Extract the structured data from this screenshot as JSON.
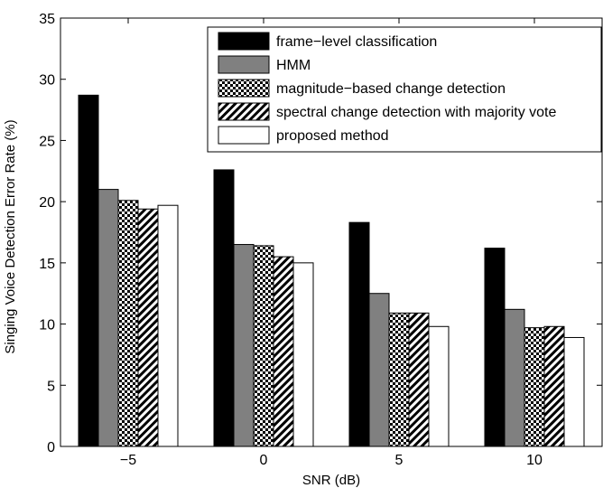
{
  "chart_data": {
    "type": "bar",
    "xlabel": "SNR (dB)",
    "ylabel": "Singing Voice Detection Error Rate (%)",
    "categories": [
      "−5",
      "0",
      "5",
      "10"
    ],
    "ylim": [
      0,
      35
    ],
    "yticks": [
      0,
      5,
      10,
      15,
      20,
      25,
      30,
      35
    ],
    "grid": false,
    "legend_position": "top-right",
    "series": [
      {
        "name": "frame−level classification",
        "values": [
          28.7,
          22.6,
          18.3,
          16.2
        ],
        "fill": "solid-black"
      },
      {
        "name": "HMM",
        "values": [
          21.0,
          16.5,
          12.5,
          11.2
        ],
        "fill": "solid-gray"
      },
      {
        "name": "magnitude−based change detection",
        "values": [
          20.1,
          16.4,
          10.9,
          9.7
        ],
        "fill": "checker"
      },
      {
        "name": "spectral change detection with majority vote",
        "values": [
          19.4,
          15.5,
          10.9,
          9.8
        ],
        "fill": "diagonal-hatch"
      },
      {
        "name": "proposed method",
        "values": [
          19.7,
          15.0,
          9.8,
          8.9
        ],
        "fill": "white"
      }
    ],
    "colors": {
      "black": "#000000",
      "gray": "#808080",
      "white": "#ffffff"
    }
  }
}
